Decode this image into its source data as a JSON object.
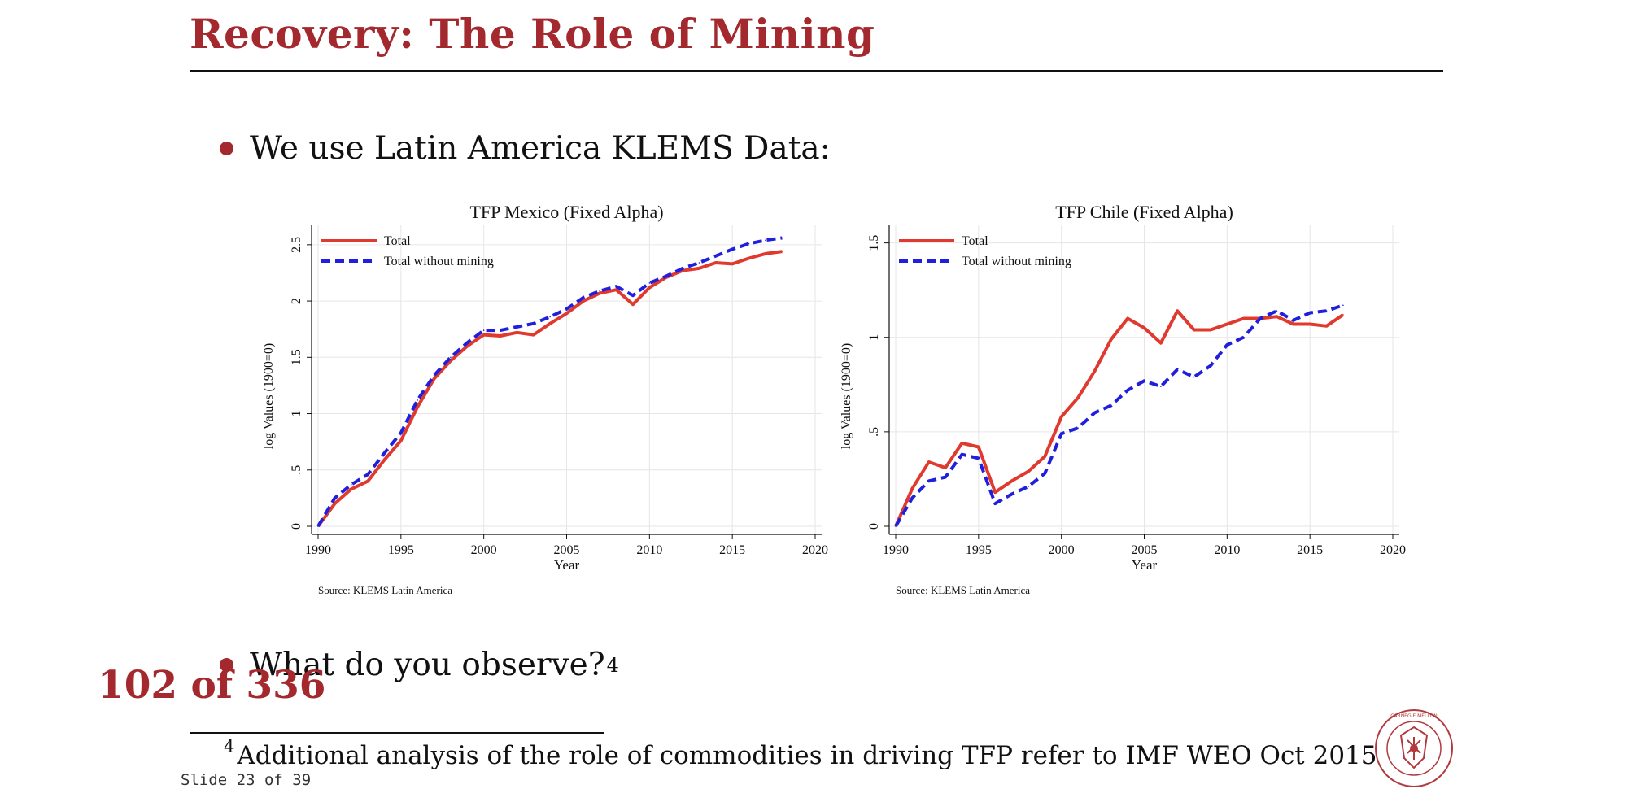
{
  "slide": {
    "title": "Recovery: The Role of Mining",
    "bullet1": "We use Latin America KLEMS Data:",
    "bullet2": "What do you observe?",
    "bullet2_footnote_mark": "4",
    "page_counter": "102 of 336",
    "footnote_mark": "4",
    "footnote": "Additional analysis of the role of commodities in driving TFP refer to IMF WEO Oct 2015",
    "slide_number": "Slide 23 of 39",
    "seal_text": "CARNEGIE MELLON UNIVERSITY · PITTSBURGH PENNSYLVANIA 1900",
    "accent_color": "#a3292e"
  },
  "chart_data": [
    {
      "type": "line",
      "title": "TFP Mexico (Fixed Alpha)",
      "xlabel": "Year",
      "ylabel": "log Values (1900=0)",
      "note": "Source: KLEMS Latin America",
      "xlim": [
        1990,
        2020
      ],
      "ylim": [
        0,
        2.6
      ],
      "xticks": [
        "1990",
        "1995",
        "2000",
        "2005",
        "2010",
        "2015",
        "2020"
      ],
      "yticks": [
        "0",
        ".5",
        "1",
        "1.5",
        "2",
        "2.5"
      ],
      "legend_position": "top-left",
      "grid": true,
      "x": [
        1990,
        1991,
        1992,
        1993,
        1994,
        1995,
        1996,
        1997,
        1998,
        1999,
        2000,
        2001,
        2002,
        2003,
        2004,
        2005,
        2006,
        2007,
        2008,
        2009,
        2010,
        2011,
        2012,
        2013,
        2014,
        2015,
        2016,
        2017,
        2018
      ],
      "series": [
        {
          "name": "Total",
          "color": "#e03a2f",
          "dash": "solid",
          "values": [
            0,
            0.2,
            0.33,
            0.4,
            0.59,
            0.76,
            1.06,
            1.31,
            1.47,
            1.6,
            1.7,
            1.69,
            1.72,
            1.7,
            1.8,
            1.89,
            2.0,
            2.07,
            2.1,
            1.97,
            2.12,
            2.21,
            2.27,
            2.29,
            2.34,
            2.33,
            2.38,
            2.42,
            2.44
          ]
        },
        {
          "name": "Total without mining",
          "color": "#1f1fdd",
          "dash": "dashed",
          "values": [
            0,
            0.25,
            0.37,
            0.46,
            0.65,
            0.83,
            1.12,
            1.34,
            1.5,
            1.63,
            1.74,
            1.74,
            1.77,
            1.8,
            1.86,
            1.93,
            2.03,
            2.09,
            2.13,
            2.05,
            2.16,
            2.22,
            2.29,
            2.34,
            2.4,
            2.46,
            2.51,
            2.54,
            2.56
          ]
        }
      ]
    },
    {
      "type": "line",
      "title": "TFP Chile (Fixed Alpha)",
      "xlabel": "Year",
      "ylabel": "log Values (1900=0)",
      "note": "Source: KLEMS Latin America",
      "xlim": [
        1990,
        2020
      ],
      "ylim": [
        0,
        1.55
      ],
      "xticks": [
        "1990",
        "1995",
        "2000",
        "2005",
        "2010",
        "2015",
        "2020"
      ],
      "yticks": [
        "0",
        ".5",
        "1",
        "1.5"
      ],
      "legend_position": "top-left",
      "grid": true,
      "x": [
        1990,
        1991,
        1992,
        1993,
        1994,
        1995,
        1996,
        1997,
        1998,
        1999,
        2000,
        2001,
        2002,
        2003,
        2004,
        2005,
        2006,
        2007,
        2008,
        2009,
        2010,
        2011,
        2012,
        2013,
        2014,
        2015,
        2016,
        2017
      ],
      "series": [
        {
          "name": "Total",
          "color": "#e03a2f",
          "dash": "solid",
          "values": [
            0,
            0.2,
            0.34,
            0.31,
            0.44,
            0.42,
            0.18,
            0.24,
            0.29,
            0.37,
            0.58,
            0.68,
            0.82,
            0.99,
            1.1,
            1.05,
            0.97,
            1.14,
            1.04,
            1.04,
            1.07,
            1.1,
            1.1,
            1.11,
            1.07,
            1.07,
            1.06,
            1.12
          ]
        },
        {
          "name": "Total without mining",
          "color": "#1f1fdd",
          "dash": "dashed",
          "values": [
            0,
            0.15,
            0.24,
            0.26,
            0.38,
            0.36,
            0.12,
            0.17,
            0.21,
            0.28,
            0.49,
            0.52,
            0.6,
            0.64,
            0.72,
            0.77,
            0.74,
            0.83,
            0.79,
            0.85,
            0.96,
            1.0,
            1.1,
            1.14,
            1.09,
            1.13,
            1.14,
            1.17
          ]
        }
      ]
    }
  ]
}
